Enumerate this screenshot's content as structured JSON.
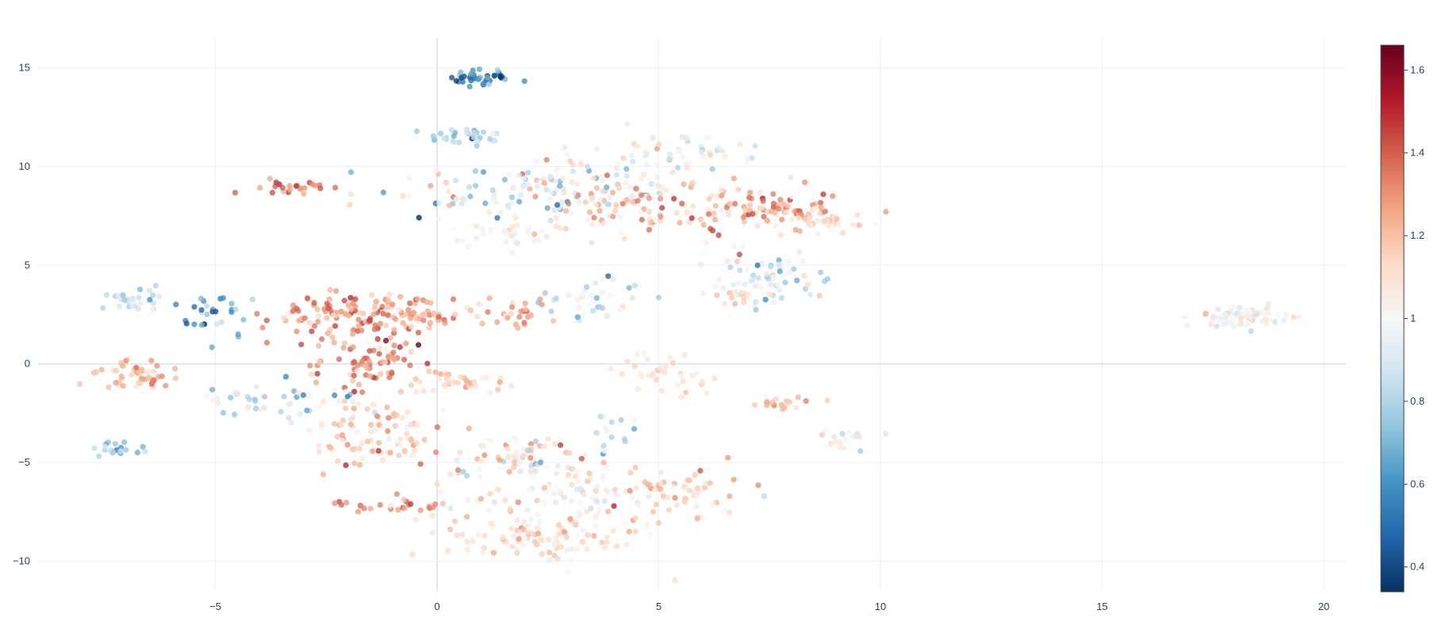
{
  "chart_data": {
    "type": "scatter",
    "title": "",
    "xlabel": "",
    "ylabel": "",
    "xlim": [
      -9.0,
      20.5
    ],
    "ylim": [
      -11.5,
      16.5
    ],
    "x_ticks": [
      -5,
      0,
      5,
      10,
      15,
      20
    ],
    "y_ticks": [
      -10,
      -5,
      0,
      5,
      10,
      15
    ],
    "x_tick_labels": [
      "−5",
      "0",
      "5",
      "10",
      "15",
      "20"
    ],
    "y_tick_labels": [
      "−10",
      "−5",
      "0",
      "5",
      "10",
      "15"
    ],
    "grid": true,
    "colorscale": "RdBu",
    "colorscale_stops": [
      "#053061",
      "#2166ac",
      "#4393c3",
      "#92c5de",
      "#d1e5f0",
      "#f7f7f7",
      "#fddbc7",
      "#f4a582",
      "#d6604d",
      "#b2182b",
      "#67001f"
    ],
    "colorbar": {
      "cmin": 0.34,
      "cmax": 1.66,
      "ticks": [
        0.4,
        0.6,
        0.8,
        1,
        1.2,
        1.4,
        1.6
      ],
      "tick_labels": [
        "0.4",
        "0.6",
        "0.8",
        "1",
        "1.2",
        "1.4",
        "1.6"
      ],
      "position": "right"
    },
    "clusters": [
      {
        "cx": 1.0,
        "cy": 14.5,
        "sx": 0.35,
        "sy": 0.25,
        "n": 40,
        "c": 0.55,
        "cs": 0.15
      },
      {
        "cx": 0.7,
        "cy": 11.5,
        "sx": 0.45,
        "sy": 0.25,
        "n": 35,
        "c": 0.8,
        "cs": 0.1
      },
      {
        "cx": 2.5,
        "cy": 8.8,
        "sx": 1.8,
        "sy": 0.9,
        "n": 140,
        "c": 0.95,
        "cs": 0.18
      },
      {
        "cx": 4.8,
        "cy": 8.0,
        "sx": 1.6,
        "sy": 0.8,
        "n": 120,
        "c": 1.15,
        "cs": 0.12
      },
      {
        "cx": 1.7,
        "cy": 6.6,
        "sx": 0.6,
        "sy": 0.35,
        "n": 30,
        "c": 1.05,
        "cs": 0.06
      },
      {
        "cx": 5.5,
        "cy": 10.8,
        "sx": 0.8,
        "sy": 0.45,
        "n": 45,
        "c": 0.95,
        "cs": 0.1
      },
      {
        "cx": 7.5,
        "cy": 7.8,
        "sx": 0.9,
        "sy": 0.5,
        "n": 70,
        "c": 1.28,
        "cs": 0.1
      },
      {
        "cx": 8.8,
        "cy": 7.2,
        "sx": 0.5,
        "sy": 0.35,
        "n": 30,
        "c": 1.1,
        "cs": 0.06
      },
      {
        "cx": -3.2,
        "cy": 8.9,
        "sx": 0.55,
        "sy": 0.2,
        "n": 25,
        "c": 1.3,
        "cs": 0.08
      },
      {
        "cx": 7.6,
        "cy": 4.3,
        "sx": 0.65,
        "sy": 0.75,
        "n": 70,
        "c": 0.92,
        "cs": 0.15
      },
      {
        "cx": 6.7,
        "cy": 3.5,
        "sx": 0.3,
        "sy": 0.2,
        "n": 15,
        "c": 1.15,
        "cs": 0.05
      },
      {
        "cx": -6.8,
        "cy": 3.3,
        "sx": 0.4,
        "sy": 0.3,
        "n": 30,
        "c": 0.82,
        "cs": 0.08
      },
      {
        "cx": -5.2,
        "cy": 2.5,
        "sx": 0.5,
        "sy": 0.6,
        "n": 30,
        "c": 0.7,
        "cs": 0.12
      },
      {
        "cx": -1.8,
        "cy": 2.5,
        "sx": 1.0,
        "sy": 0.6,
        "n": 110,
        "c": 1.3,
        "cs": 0.1
      },
      {
        "cx": -1.6,
        "cy": 0.2,
        "sx": 0.6,
        "sy": 0.9,
        "n": 80,
        "c": 1.35,
        "cs": 0.1
      },
      {
        "cx": -0.3,
        "cy": 2.5,
        "sx": 0.5,
        "sy": 0.4,
        "n": 40,
        "c": 1.25,
        "cs": 0.08
      },
      {
        "cx": 1.8,
        "cy": 2.6,
        "sx": 0.5,
        "sy": 0.4,
        "n": 30,
        "c": 1.22,
        "cs": 0.08
      },
      {
        "cx": 3.5,
        "cy": 3.2,
        "sx": 0.6,
        "sy": 0.6,
        "n": 40,
        "c": 0.92,
        "cs": 0.15
      },
      {
        "cx": 18.0,
        "cy": 2.4,
        "sx": 0.5,
        "sy": 0.25,
        "n": 70,
        "c": 1.0,
        "cs": 0.1
      },
      {
        "cx": -7.0,
        "cy": -0.5,
        "sx": 0.4,
        "sy": 0.4,
        "n": 35,
        "c": 1.2,
        "cs": 0.06
      },
      {
        "cx": -6.3,
        "cy": -0.6,
        "sx": 0.3,
        "sy": 0.3,
        "n": 15,
        "c": 1.28,
        "cs": 0.08
      },
      {
        "cx": 0.5,
        "cy": -0.9,
        "sx": 0.55,
        "sy": 0.3,
        "n": 35,
        "c": 1.15,
        "cs": 0.06
      },
      {
        "cx": 5.2,
        "cy": -0.5,
        "sx": 0.6,
        "sy": 0.4,
        "n": 35,
        "c": 1.1,
        "cs": 0.08
      },
      {
        "cx": -3.5,
        "cy": -1.8,
        "sx": 1.0,
        "sy": 0.4,
        "n": 45,
        "c": 0.85,
        "cs": 0.15
      },
      {
        "cx": -1.5,
        "cy": -3.5,
        "sx": 0.9,
        "sy": 0.8,
        "n": 90,
        "c": 1.15,
        "cs": 0.12
      },
      {
        "cx": -7.2,
        "cy": -4.3,
        "sx": 0.35,
        "sy": 0.2,
        "n": 20,
        "c": 0.75,
        "cs": 0.08
      },
      {
        "cx": 2.0,
        "cy": -4.6,
        "sx": 0.9,
        "sy": 0.6,
        "n": 70,
        "c": 1.05,
        "cs": 0.15
      },
      {
        "cx": 3.0,
        "cy": -6.5,
        "sx": 1.3,
        "sy": 0.8,
        "n": 90,
        "c": 1.05,
        "cs": 0.12
      },
      {
        "cx": 5.5,
        "cy": -6.5,
        "sx": 0.8,
        "sy": 0.6,
        "n": 60,
        "c": 1.15,
        "cs": 0.1
      },
      {
        "cx": 2.5,
        "cy": -8.8,
        "sx": 1.2,
        "sy": 0.7,
        "n": 110,
        "c": 1.1,
        "cs": 0.08
      },
      {
        "cx": -1.2,
        "cy": -7.2,
        "sx": 0.7,
        "sy": 0.2,
        "n": 25,
        "c": 1.3,
        "cs": 0.08
      },
      {
        "cx": 7.8,
        "cy": -2.0,
        "sx": 0.45,
        "sy": 0.2,
        "n": 20,
        "c": 1.2,
        "cs": 0.06
      },
      {
        "cx": 9.3,
        "cy": -3.8,
        "sx": 0.4,
        "sy": 0.3,
        "n": 20,
        "c": 0.95,
        "cs": 0.12
      },
      {
        "cx": 4.0,
        "cy": -3.5,
        "sx": 0.4,
        "sy": 0.4,
        "n": 15,
        "c": 0.85,
        "cs": 0.08
      }
    ]
  }
}
